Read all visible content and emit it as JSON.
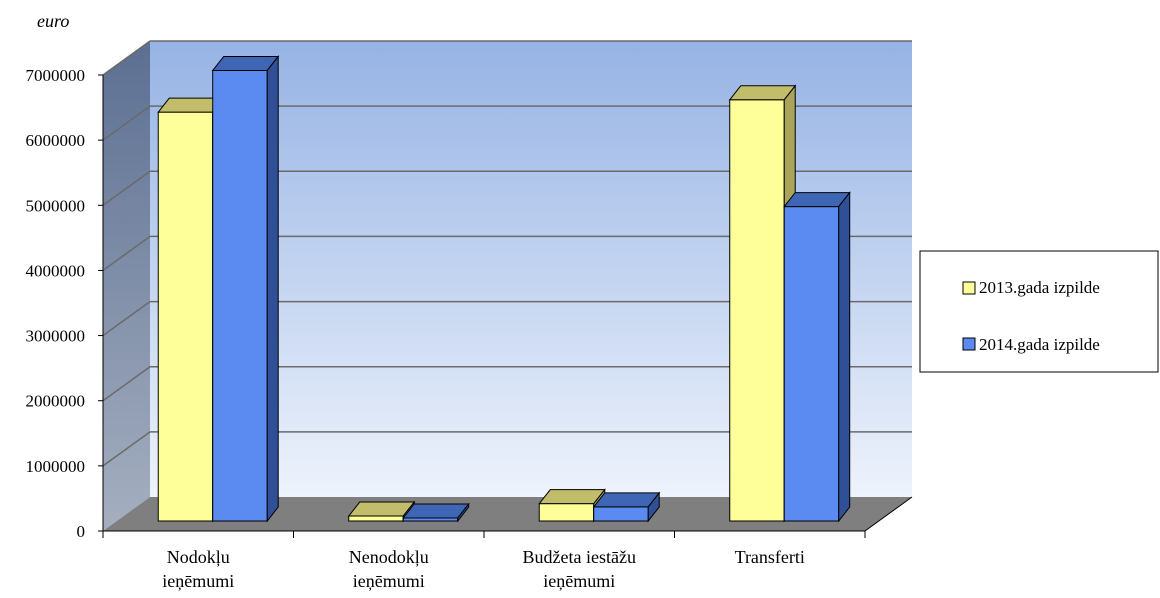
{
  "chart_data": {
    "type": "bar",
    "unit_label": "euro",
    "categories": [
      [
        "Nodokļu",
        "ieņēmumi"
      ],
      [
        "Nenodokļu",
        "ieņēmumi"
      ],
      [
        "Budžeta iestāžu",
        "ieņēmumi"
      ],
      [
        "Transferti"
      ]
    ],
    "series": [
      {
        "name": "2013.gada izpilde",
        "values": [
          6430000,
          230000,
          420000,
          6620000
        ],
        "color": "#ffff99",
        "top_color": "#c2bd6a",
        "side_color": "#a9a45a"
      },
      {
        "name": "2014.gada izpilde",
        "values": [
          7070000,
          200000,
          370000,
          4980000
        ],
        "color": "#5b8bf0",
        "top_color": "#3f66b4",
        "side_color": "#2f4f96"
      }
    ],
    "ylim": [
      0,
      7000000
    ],
    "yticks": [
      0,
      1000000,
      2000000,
      3000000,
      4000000,
      5000000,
      6000000,
      7000000
    ],
    "grid": true,
    "legend_position": "right"
  }
}
